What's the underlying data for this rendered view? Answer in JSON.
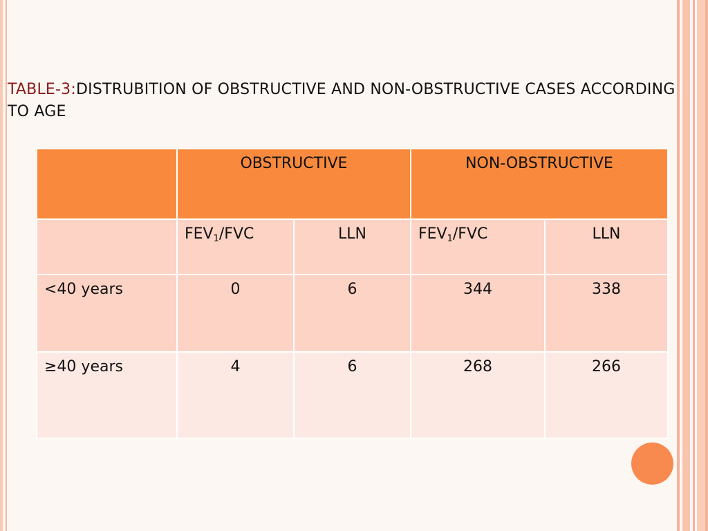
{
  "title": {
    "prefix": "TABLE-3:",
    "text": "DISTRUBITION OF OBSTRUCTIVE AND NON-OBSTRUCTIVE CASES  ACCORDING TO AGE"
  },
  "table": {
    "header": {
      "blank": "",
      "obstructive": "OBSTRUCTIVE",
      "non_obstructive": "NON-OBSTRUCTIVE"
    },
    "subheader": {
      "fev_prefix": "FEV",
      "fev_sub": "1",
      "fev_suffix": "/FVC",
      "lln": "LLN"
    },
    "rows": [
      {
        "label": "<40 years",
        "obs_fev": "0",
        "obs_lln": "6",
        "non_fev": "344",
        "non_lln": "338"
      },
      {
        "label": "≥40 years",
        "obs_fev": "4",
        "obs_lln": "6",
        "non_fev": "268",
        "non_lln": "266"
      }
    ]
  },
  "colors": {
    "header_bg": "#f98a3d",
    "row_bg_1": "#fcd3c4",
    "row_bg_2": "#fde9e4",
    "title_prefix": "#8a1a1a",
    "accent_circle": "#f98a4f"
  }
}
